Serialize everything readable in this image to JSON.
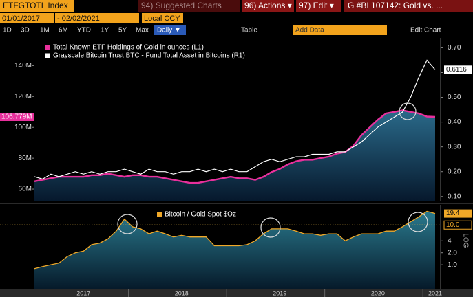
{
  "toolbar": {
    "ticker": "ETFGTOTL Index",
    "suggested": "94) Suggested Charts",
    "actions": "96) Actions ▾",
    "edit": "97) Edit ▾",
    "chart_title": "G #BI 107142: Gold vs. ...",
    "start_date": "01/01/2017",
    "end_date": "- 02/02/2021",
    "currency": "Local CCY",
    "periods": [
      "1D",
      "3D",
      "1M",
      "6M",
      "YTD",
      "1Y",
      "5Y",
      "Max"
    ],
    "frequency": "Daily ▼",
    "table": "Table",
    "add_data": "Add Data",
    "edit_chart": "Edit Chart"
  },
  "chart_data": [
    {
      "type": "line",
      "series": [
        {
          "name": "Total Known ETF Holdings of Gold in ounces (L1)",
          "color": "#e8309c",
          "area": true,
          "tag_label": "106.779M",
          "values": [
            65000000,
            66000000,
            67000000,
            68000000,
            68000000,
            68000000,
            68000000,
            69000000,
            69000000,
            70000000,
            69000000,
            68000000,
            69000000,
            69000000,
            68000000,
            68000000,
            67000000,
            66000000,
            65000000,
            64000000,
            64000000,
            65000000,
            66000000,
            67000000,
            68000000,
            67000000,
            67000000,
            66000000,
            68000000,
            71000000,
            73000000,
            76000000,
            78000000,
            79000000,
            79000000,
            80000000,
            81000000,
            83000000,
            84000000,
            88000000,
            95000000,
            100000000,
            105000000,
            109000000,
            110000000,
            111000000,
            110000000,
            109000000,
            107000000,
            106779000
          ]
        },
        {
          "name": "Grayscale Bitcoin Trust BTC - Fund Total Asset in Bitcoins (R1)",
          "color": "#ffffff",
          "axis": "y2",
          "values": [
            0.18,
            0.17,
            0.19,
            0.18,
            0.19,
            0.2,
            0.19,
            0.2,
            0.19,
            0.2,
            0.2,
            0.21,
            0.2,
            0.19,
            0.21,
            0.2,
            0.2,
            0.19,
            0.2,
            0.2,
            0.21,
            0.2,
            0.21,
            0.2,
            0.21,
            0.2,
            0.2,
            0.22,
            0.24,
            0.25,
            0.24,
            0.25,
            0.26,
            0.26,
            0.27,
            0.27,
            0.27,
            0.28,
            0.28,
            0.3,
            0.32,
            0.35,
            0.38,
            0.4,
            0.42,
            0.44,
            0.5,
            0.58,
            0.65,
            0.6116
          ]
        }
      ],
      "ylim": [
        52000000,
        158000000
      ],
      "yticks": [
        {
          "value": 60000000,
          "label": "60M"
        },
        {
          "value": 80000000,
          "label": "80M"
        },
        {
          "value": 100000000,
          "label": "100M"
        },
        {
          "value": 120000000,
          "label": "120M"
        },
        {
          "value": 140000000,
          "label": "140M"
        }
      ],
      "y2lim": [
        0.08,
        0.74
      ],
      "y2ticks": [
        {
          "value": 0.1,
          "label": "0.10"
        },
        {
          "value": 0.2,
          "label": "0.20"
        },
        {
          "value": 0.3,
          "label": "0.30"
        },
        {
          "value": 0.4,
          "label": "0.40"
        },
        {
          "value": 0.5,
          "label": "0.50"
        },
        {
          "value": 0.6,
          "label": "0.60"
        },
        {
          "value": 0.7,
          "label": "0.70"
        }
      ]
    },
    {
      "type": "line",
      "log_scale": true,
      "scale_label": "LOG",
      "categories": [
        null,
        null,
        null,
        null,
        null,
        null,
        "2017",
        null,
        null,
        null,
        null,
        null,
        null,
        null,
        null,
        null,
        null,
        null,
        "2018",
        null,
        null,
        null,
        null,
        null,
        null,
        null,
        null,
        null,
        null,
        null,
        "2019",
        null,
        null,
        null,
        null,
        null,
        null,
        null,
        null,
        null,
        null,
        null,
        "2020",
        null,
        null,
        null,
        null,
        null,
        null,
        "2021"
      ],
      "series": [
        {
          "name": "Bitcoin / Gold Spot $Oz",
          "color": "#f0a828",
          "axis": "y2",
          "area": true,
          "values": [
            0.8,
            0.9,
            1.0,
            1.1,
            1.6,
            2.0,
            2.2,
            3.2,
            3.5,
            4.5,
            7,
            14,
            9,
            8,
            6,
            7,
            6,
            5,
            5.5,
            5,
            5,
            5,
            3,
            3,
            3,
            3,
            3.2,
            4,
            6,
            8,
            8,
            8,
            7,
            6,
            6,
            5.5,
            6,
            6,
            4,
            5,
            6,
            6,
            6,
            7,
            7,
            9,
            12,
            16,
            22,
            19.4
          ]
        }
      ],
      "y2lim": [
        0.25,
        32
      ],
      "y2ticks": [
        {
          "value": 1,
          "label": "1.0"
        },
        {
          "value": 2,
          "label": "2.0"
        },
        4
      ],
      "reference_line": {
        "value": 10,
        "label": "10.0"
      }
    }
  ]
}
